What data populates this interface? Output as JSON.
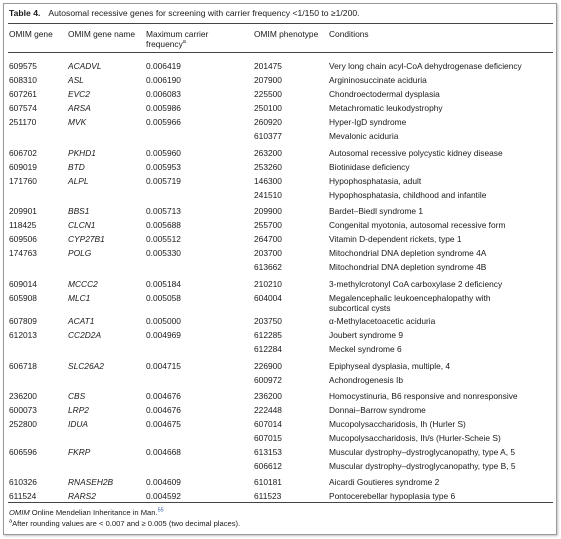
{
  "table": {
    "number_label": "Table 4.",
    "title": "Autosomal recessive genes for screening with carrier frequency <1/150 to ≥1/200.",
    "headers": {
      "omim_gene": "OMIM gene",
      "gene_name": "OMIM gene name",
      "freq_line1": "Maximum carrier",
      "freq_line2": "frequency",
      "freq_sup": "a",
      "phenotype": "OMIM phenotype",
      "conditions": "Conditions"
    },
    "rows": [
      {
        "gene": "609575",
        "name": "ACADVL",
        "freq": "0.006419",
        "phen": "201475",
        "cond": "Very long chain acyl-CoA dehydrogenase deficiency"
      },
      {
        "gene": "608310",
        "name": "ASL",
        "freq": "0.006190",
        "phen": "207900",
        "cond": "Argininosuccinate aciduria"
      },
      {
        "gene": "607261",
        "name": "EVC2",
        "freq": "0.006083",
        "phen": "225500",
        "cond": "Chondroectodermal dysplasia"
      },
      {
        "gene": "607574",
        "name": "ARSA",
        "freq": "0.005986",
        "phen": "250100",
        "cond": "Metachromatic leukodystrophy"
      },
      {
        "gene": "251170",
        "name": "MVK",
        "freq": "0.005966",
        "phen": "260920",
        "cond": "Hyper-IgD syndrome"
      },
      {
        "gene": "",
        "name": "",
        "freq": "",
        "phen": "610377",
        "cond": "Mevalonic aciduria"
      },
      {
        "gene": "606702",
        "name": "PKHD1",
        "freq": "0.005960",
        "phen": "263200",
        "cond": "Autosomal recessive polycystic kidney disease"
      },
      {
        "gene": "609019",
        "name": "BTD",
        "freq": "0.005953",
        "phen": "253260",
        "cond": "Biotinidase deficiency"
      },
      {
        "gene": "171760",
        "name": "ALPL",
        "freq": "0.005719",
        "phen": "146300",
        "cond": "Hypophosphatasia, adult"
      },
      {
        "gene": "",
        "name": "",
        "freq": "",
        "phen": "241510",
        "cond": "Hypophosphatasia, childhood and infantile"
      },
      {
        "gene": "209901",
        "name": "BBS1",
        "freq": "0.005713",
        "phen": "209900",
        "cond": "Bardet–Biedl syndrome 1"
      },
      {
        "gene": "118425",
        "name": "CLCN1",
        "freq": "0.005688",
        "phen": "255700",
        "cond": "Congenital myotonia, autosomal recessive form"
      },
      {
        "gene": "609506",
        "name": "CYP27B1",
        "freq": "0.005512",
        "phen": "264700",
        "cond": "Vitamin D-dependent rickets, type 1"
      },
      {
        "gene": "174763",
        "name": "POLG",
        "freq": "0.005330",
        "phen": "203700",
        "cond": "Mitochondrial DNA depletion syndrome 4A"
      },
      {
        "gene": "",
        "name": "",
        "freq": "",
        "phen": "613662",
        "cond": "Mitochondrial DNA depletion syndrome 4B"
      },
      {
        "gene": "609014",
        "name": "MCCC2",
        "freq": "0.005184",
        "phen": "210210",
        "cond": "3-methylcrotonyl CoA carboxylase 2 deficiency"
      },
      {
        "gene": "605908",
        "name": "MLC1",
        "freq": "0.005058",
        "phen": "604004",
        "cond": "Megalencephalic leukoencephalopathy with",
        "cond2": "subcortical cysts"
      },
      {
        "gene": "607809",
        "name": "ACAT1",
        "freq": "0.005000",
        "phen": "203750",
        "cond": "α-Methylacetoacetic aciduria"
      },
      {
        "gene": "612013",
        "name": "CC2D2A",
        "freq": "0.004969",
        "phen": "612285",
        "cond": "Joubert syndrome 9"
      },
      {
        "gene": "",
        "name": "",
        "freq": "",
        "phen": "612284",
        "cond": "Meckel syndrome 6"
      },
      {
        "gene": "606718",
        "name": "SLC26A2",
        "freq": "0.004715",
        "phen": "226900",
        "cond": "Epiphyseal dysplasia, multiple, 4"
      },
      {
        "gene": "",
        "name": "",
        "freq": "",
        "phen": "600972",
        "cond": "Achondrogenesis Ib"
      },
      {
        "gene": "236200",
        "name": "CBS",
        "freq": "0.004676",
        "phen": "236200",
        "cond": "Homocystinuria, B6 responsive and nonresponsive"
      },
      {
        "gene": "600073",
        "name": "LRP2",
        "freq": "0.004676",
        "phen": "222448",
        "cond": "Donnai–Barrow syndrome"
      },
      {
        "gene": "252800",
        "name": "IDUA",
        "freq": "0.004675",
        "phen": "607014",
        "cond": "Mucopolysaccharidosis, Ih (Hurler S)"
      },
      {
        "gene": "",
        "name": "",
        "freq": "",
        "phen": "607015",
        "cond": "Mucopolysaccharidosis, Ih/s (Hurler-Scheie S)"
      },
      {
        "gene": "606596",
        "name": "FKRP",
        "freq": "0.004668",
        "phen": "613153",
        "cond": "Muscular dystrophy–dystroglycanopathy, type A, 5"
      },
      {
        "gene": "",
        "name": "",
        "freq": "",
        "phen": "606612",
        "cond": "Muscular dystrophy–dystroglycanopathy, type B, 5"
      },
      {
        "gene": "610326",
        "name": "RNASEH2B",
        "freq": "0.004609",
        "phen": "610181",
        "cond": "Aicardi Goutieres syndrome 2"
      },
      {
        "gene": "611524",
        "name": "RARS2",
        "freq": "0.004592",
        "phen": "611523",
        "cond": "Pontocerebellar hypoplasia type 6"
      }
    ],
    "footnote1_abbr": "OMIM",
    "footnote1_text": " Online Mendelian Inheritance in Man.",
    "footnote1_ref": "55",
    "footnote2_sup": "a",
    "footnote2_text": "After rounding values are < 0.007 and ≥ 0.005 (two decimal places)."
  }
}
